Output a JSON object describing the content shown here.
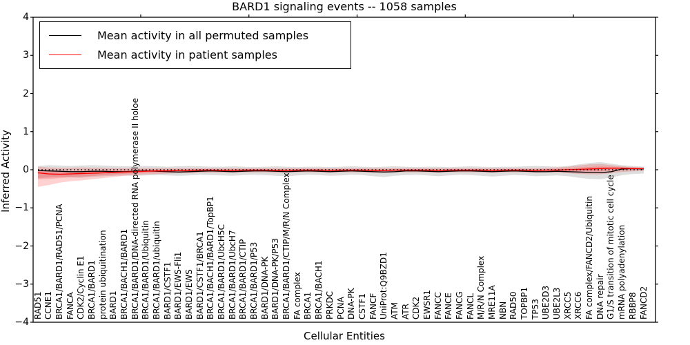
{
  "figure": {
    "title": "BARD1 signaling events -- 1058 samples",
    "xlabel": "Cellular Entities",
    "ylabel": "Inferred Activity"
  },
  "legend": {
    "position": "upper left",
    "items": [
      {
        "label": "Mean activity in all permuted samples",
        "color": "#000000"
      },
      {
        "label": "Mean activity in patient samples",
        "color": "#ff0000"
      }
    ]
  },
  "axes": {
    "y_tick_labels": [
      "4",
      "3",
      "2",
      "1",
      "0",
      "−1",
      "−2",
      "−3",
      "−4"
    ],
    "y_min": -4,
    "y_max": 4,
    "grid": false
  },
  "chart_data": {
    "type": "line",
    "title": "BARD1 signaling events -- 1058 samples",
    "xlabel": "Cellular Entities",
    "ylabel": "Inferred Activity",
    "ylim": [
      -4,
      4
    ],
    "grid": false,
    "legend_position": "upper left",
    "categories": [
      "RAD51",
      "CCNE1",
      "BRCA1/BARD1/RAD51/PCNA",
      "FANCA",
      "CDK2/Cyclin E1",
      "BRCA1/BARD1",
      "protein ubiquitination",
      "BARD1",
      "BRCA1/BACH1/BARD1",
      "BRCA1/BARD1/DNA-directed RNA polymerase II holoe",
      "BRCA1/BARD1/Ubiquitin",
      "BRCA1/BARD1/ubiquitin",
      "BARD1/CSTF1",
      "BARD1/EWS-Fli1",
      "BARD1/EWS",
      "BARD1/CSTF1/BRCA1",
      "BRCA1/BACH1/BARD1/TopBP1",
      "BRCA1/BARD1/UbcH5C",
      "BRCA1/BARD1/UbcH7",
      "BRCA1/BARD1/CTIP",
      "BRCA1/BARD1/P53",
      "BARD1/DNA-PK",
      "BARD1/DNA-PK/P53",
      "BRCA1/BARD1/CTIP/M/R/N Complex",
      "FA complex",
      "BRCA1",
      "BRCA1/BACH1",
      "PRKDC",
      "PCNA",
      "DNA-PK",
      "CSTF1",
      "FANCF",
      "UniProt:Q9BZD1",
      "ATM",
      "ATR",
      "CDK2",
      "EWSR1",
      "FANCC",
      "FANCE",
      "FANCG",
      "FANCL",
      "M/R/N Complex",
      "MRE11A",
      "NBN",
      "RAD50",
      "TOPBP1",
      "TP53",
      "UBE2D3",
      "UBE2L3",
      "XRCC5",
      "XRCC6",
      "FA complex/FANCD2/Ubiquitin",
      "DNA repair",
      "G1/S transition of mitotic cell cycle",
      "mRNA polyadenylation",
      "RBBP8",
      "FANCD2"
    ],
    "series": [
      {
        "name": "Mean activity in all permuted samples",
        "color": "#000000",
        "values": [
          -0.02,
          -0.03,
          -0.04,
          -0.05,
          -0.05,
          -0.04,
          -0.04,
          -0.05,
          -0.05,
          -0.04,
          -0.03,
          -0.04,
          -0.05,
          -0.06,
          -0.05,
          -0.04,
          -0.03,
          -0.04,
          -0.05,
          -0.04,
          -0.03,
          -0.03,
          -0.04,
          -0.05,
          -0.04,
          -0.03,
          -0.04,
          -0.05,
          -0.04,
          -0.03,
          -0.04,
          -0.05,
          -0.06,
          -0.05,
          -0.03,
          -0.03,
          -0.04,
          -0.05,
          -0.04,
          -0.03,
          -0.03,
          -0.04,
          -0.05,
          -0.04,
          -0.03,
          -0.04,
          -0.05,
          -0.05,
          -0.04,
          -0.05,
          -0.06,
          -0.07,
          -0.08,
          -0.05,
          0.02,
          0.03,
          0.02
        ]
      },
      {
        "name": "Mean activity in patient samples",
        "color": "#ff0000",
        "values": [
          -0.08,
          -0.11,
          -0.12,
          -0.11,
          -0.1,
          -0.09,
          -0.08,
          -0.07,
          -0.06,
          -0.05,
          -0.04,
          -0.03,
          -0.03,
          -0.02,
          -0.02,
          -0.01,
          -0.01,
          -0.02,
          -0.02,
          -0.01,
          -0.01,
          -0.01,
          -0.02,
          -0.02,
          -0.01,
          -0.01,
          -0.01,
          -0.02,
          -0.01,
          -0.01,
          -0.01,
          -0.02,
          -0.02,
          -0.01,
          -0.01,
          -0.01,
          -0.01,
          -0.02,
          -0.01,
          -0.01,
          -0.01,
          -0.01,
          -0.02,
          -0.01,
          -0.01,
          -0.01,
          -0.02,
          -0.01,
          -0.01,
          0.0,
          0.01,
          0.02,
          0.03,
          0.04,
          0.04,
          0.03,
          0.03
        ]
      }
    ],
    "bands": [
      {
        "name": "permuted-samples-range",
        "color": "rgba(0,0,0,0.13)",
        "upper": [
          0.1,
          0.12,
          0.11,
          0.1,
          0.11,
          0.12,
          0.11,
          0.1,
          0.09,
          0.1,
          0.1,
          0.09,
          0.08,
          0.09,
          0.1,
          0.09,
          0.08,
          0.08,
          0.09,
          0.08,
          0.07,
          0.08,
          0.09,
          0.08,
          0.07,
          0.08,
          0.08,
          0.07,
          0.08,
          0.09,
          0.08,
          0.07,
          0.08,
          0.09,
          0.08,
          0.07,
          0.08,
          0.08,
          0.07,
          0.08,
          0.09,
          0.08,
          0.07,
          0.08,
          0.08,
          0.09,
          0.1,
          0.09,
          0.08,
          0.1,
          0.14,
          0.18,
          0.2,
          0.16,
          0.12,
          0.1,
          0.08
        ],
        "lower": [
          -0.22,
          -0.2,
          -0.19,
          -0.2,
          -0.21,
          -0.19,
          -0.17,
          -0.16,
          -0.15,
          -0.16,
          -0.15,
          -0.14,
          -0.15,
          -0.16,
          -0.15,
          -0.13,
          -0.14,
          -0.15,
          -0.16,
          -0.14,
          -0.13,
          -0.14,
          -0.16,
          -0.17,
          -0.15,
          -0.13,
          -0.14,
          -0.16,
          -0.15,
          -0.13,
          -0.14,
          -0.17,
          -0.19,
          -0.16,
          -0.14,
          -0.13,
          -0.15,
          -0.17,
          -0.15,
          -0.13,
          -0.14,
          -0.16,
          -0.18,
          -0.16,
          -0.14,
          -0.15,
          -0.17,
          -0.16,
          -0.15,
          -0.17,
          -0.21,
          -0.24,
          -0.25,
          -0.2,
          -0.14,
          -0.11,
          -0.1
        ]
      },
      {
        "name": "patient-samples-range",
        "color": "rgba(255,0,0,0.18)",
        "upper": [
          0.08,
          0.06,
          0.05,
          0.05,
          0.06,
          0.05,
          0.05,
          0.04,
          0.04,
          0.04,
          0.04,
          0.04,
          0.04,
          0.04,
          0.04,
          0.04,
          0.04,
          0.04,
          0.04,
          0.04,
          0.04,
          0.04,
          0.04,
          0.04,
          0.04,
          0.04,
          0.04,
          0.04,
          0.04,
          0.04,
          0.04,
          0.04,
          0.04,
          0.04,
          0.04,
          0.04,
          0.04,
          0.04,
          0.04,
          0.04,
          0.04,
          0.04,
          0.04,
          0.04,
          0.04,
          0.04,
          0.04,
          0.05,
          0.06,
          0.08,
          0.11,
          0.14,
          0.15,
          0.12,
          0.09,
          0.07,
          0.06
        ],
        "lower": [
          -0.45,
          -0.4,
          -0.34,
          -0.3,
          -0.28,
          -0.25,
          -0.22,
          -0.19,
          -0.16,
          -0.14,
          -0.12,
          -0.11,
          -0.1,
          -0.09,
          -0.09,
          -0.08,
          -0.08,
          -0.08,
          -0.08,
          -0.07,
          -0.07,
          -0.07,
          -0.08,
          -0.08,
          -0.07,
          -0.07,
          -0.07,
          -0.08,
          -0.07,
          -0.07,
          -0.07,
          -0.08,
          -0.08,
          -0.07,
          -0.07,
          -0.07,
          -0.07,
          -0.08,
          -0.07,
          -0.07,
          -0.07,
          -0.07,
          -0.08,
          -0.07,
          -0.07,
          -0.07,
          -0.08,
          -0.07,
          -0.08,
          -0.09,
          -0.11,
          -0.12,
          -0.12,
          -0.09,
          -0.06,
          -0.04,
          -0.03
        ]
      }
    ],
    "zero_line": {
      "y": 0,
      "style": "dotted",
      "color": "#000000"
    }
  }
}
